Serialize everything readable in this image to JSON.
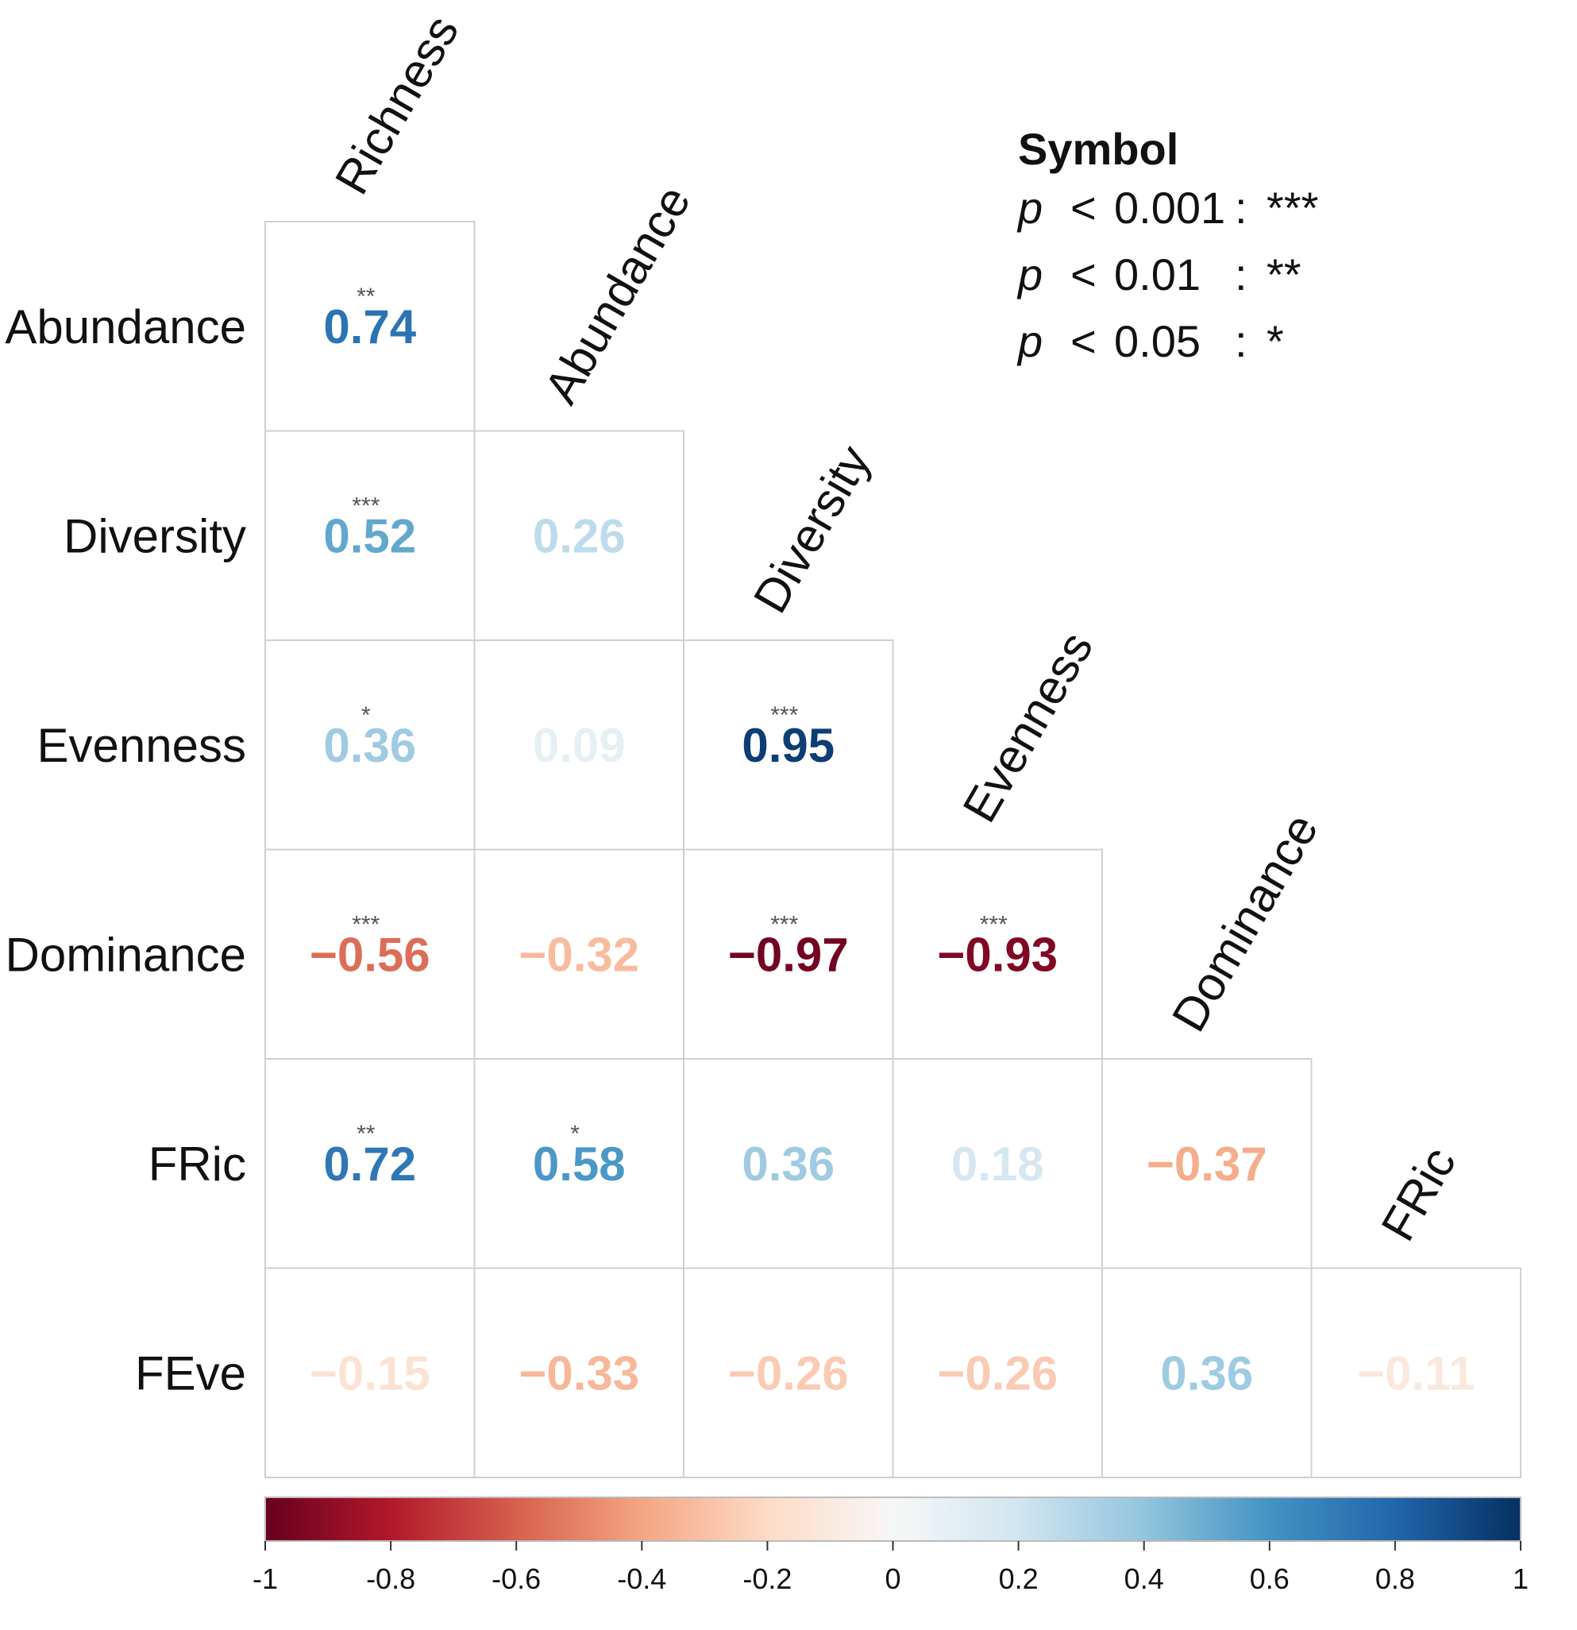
{
  "chart_data": {
    "type": "heatmap",
    "subtype": "correlation-matrix-lower-triangle",
    "row_labels": [
      "Abundance",
      "Diversity",
      "Evenness",
      "Dominance",
      "FRic",
      "FEve"
    ],
    "col_labels": [
      "Richness",
      "Abundance",
      "Diversity",
      "Evenness",
      "Dominance",
      "FRic"
    ],
    "rows": [
      [
        {
          "value": 0.74,
          "label": "0.74",
          "sig": "**"
        }
      ],
      [
        {
          "value": 0.52,
          "label": "0.52",
          "sig": "***"
        },
        {
          "value": 0.26,
          "label": "0.26",
          "sig": ""
        }
      ],
      [
        {
          "value": 0.36,
          "label": "0.36",
          "sig": "*"
        },
        {
          "value": 0.09,
          "label": "0.09",
          "sig": ""
        },
        {
          "value": 0.95,
          "label": "0.95",
          "sig": "***"
        }
      ],
      [
        {
          "value": -0.56,
          "label": "−0.56",
          "sig": "***"
        },
        {
          "value": -0.32,
          "label": "−0.32",
          "sig": ""
        },
        {
          "value": -0.97,
          "label": "−0.97",
          "sig": "***"
        },
        {
          "value": -0.93,
          "label": "−0.93",
          "sig": "***"
        }
      ],
      [
        {
          "value": 0.72,
          "label": "0.72",
          "sig": "**"
        },
        {
          "value": 0.58,
          "label": "0.58",
          "sig": "*"
        },
        {
          "value": 0.36,
          "label": "0.36",
          "sig": ""
        },
        {
          "value": 0.18,
          "label": "0.18",
          "sig": ""
        },
        {
          "value": -0.37,
          "label": "−0.37",
          "sig": ""
        }
      ],
      [
        {
          "value": -0.15,
          "label": "−0.15",
          "sig": ""
        },
        {
          "value": -0.33,
          "label": "−0.33",
          "sig": ""
        },
        {
          "value": -0.26,
          "label": "−0.26",
          "sig": ""
        },
        {
          "value": -0.26,
          "label": "−0.26",
          "sig": ""
        },
        {
          "value": 0.36,
          "label": "0.36",
          "sig": ""
        },
        {
          "value": -0.11,
          "label": "−0.11",
          "sig": ""
        }
      ]
    ],
    "colorbar": {
      "range": [
        -1,
        1
      ],
      "ticks": [
        "-1",
        "-0.8",
        "-0.6",
        "-0.4",
        "-0.2",
        "0",
        "0.2",
        "0.4",
        "0.6",
        "0.8",
        "1"
      ],
      "palette": [
        "#67001f",
        "#b2182b",
        "#d6604d",
        "#f4a582",
        "#fddbc7",
        "#f7f7f7",
        "#d1e5f0",
        "#92c5de",
        "#4393c3",
        "#2166ac",
        "#053061"
      ]
    },
    "legend": {
      "title": "Symbol",
      "entries": [
        {
          "p": "p",
          "lt": "<",
          "threshold": "0.001",
          "sep": ":",
          "symbol": "***"
        },
        {
          "p": "p",
          "lt": "<",
          "threshold": "0.01",
          "sep": ":",
          "symbol": "**"
        },
        {
          "p": "p",
          "lt": "<",
          "threshold": "0.05",
          "sep": ":",
          "symbol": "*"
        }
      ]
    }
  }
}
